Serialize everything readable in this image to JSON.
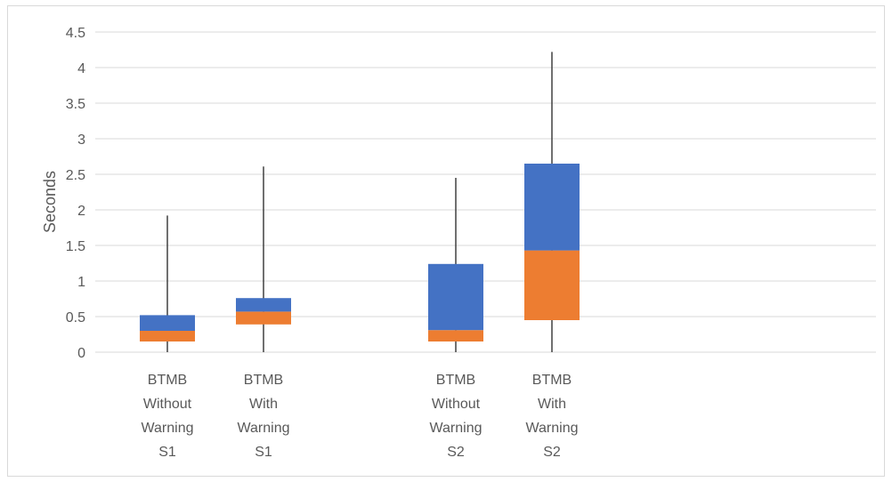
{
  "chart_data": {
    "type": "bar",
    "subtype": "stacked-box",
    "ylabel": "Seconds",
    "ylim": [
      0,
      4.5
    ],
    "yticks": [
      0,
      0.5,
      1,
      1.5,
      2,
      2.5,
      3,
      3.5,
      4,
      4.5
    ],
    "ytick_labels": [
      "0",
      "0.5",
      "1",
      "1.5",
      "2",
      "2.5",
      "3",
      "3.5",
      "4",
      "4.5"
    ],
    "grid": true,
    "colors": {
      "lower": "#ED7D31",
      "upper": "#4472C4",
      "whisker": "#404040"
    },
    "categories": [
      {
        "lines": [
          "BTMB",
          "Without",
          "Warning",
          "S1"
        ],
        "slot": 0
      },
      {
        "lines": [
          "BTMB",
          "With",
          "Warning",
          "S1"
        ],
        "slot": 1
      },
      {
        "lines": [
          "BTMB",
          "Without",
          "Warning",
          "S2"
        ],
        "slot": 3
      },
      {
        "lines": [
          "BTMB",
          "With",
          "Warning",
          "S2"
        ],
        "slot": 4
      }
    ],
    "boxes": [
      {
        "min": 0,
        "q1": 0.15,
        "median": 0.3,
        "q3": 0.52,
        "max": 1.92
      },
      {
        "min": 0,
        "q1": 0.39,
        "median": 0.57,
        "q3": 0.76,
        "max": 2.61
      },
      {
        "min": 0,
        "q1": 0.15,
        "median": 0.31,
        "q3": 1.24,
        "max": 2.45
      },
      {
        "min": 0,
        "q1": 0.45,
        "median": 1.43,
        "q3": 2.65,
        "max": 4.22
      }
    ]
  }
}
